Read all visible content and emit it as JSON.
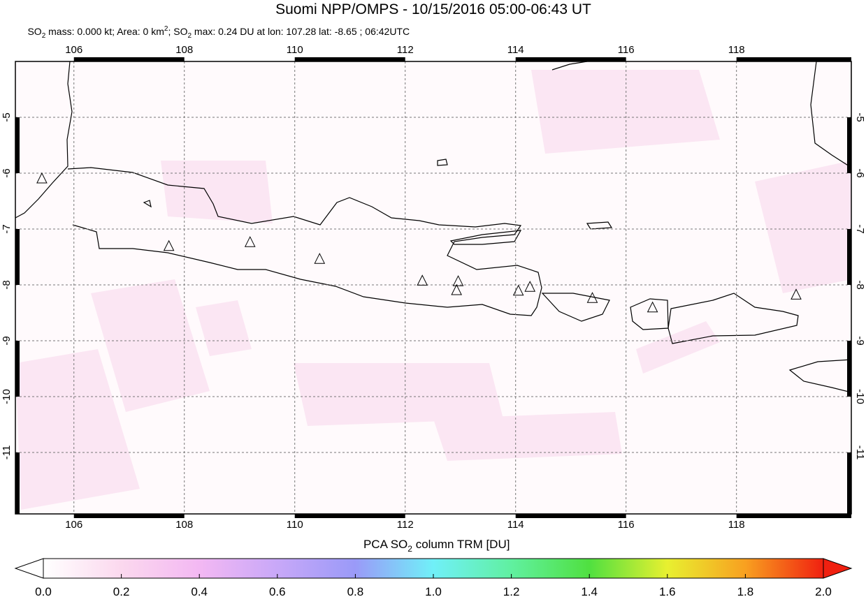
{
  "chart_data": {
    "type": "map",
    "title": "Suomi NPP/OMPS - 10/15/2016 05:00-06:43 UT",
    "subtitle": [
      "SO",
      "2",
      " mass: 0.000 kt; Area: 0 km",
      "2",
      "; SO",
      "2",
      " max: 0.24 DU at lon: 107.28 lat: -8.65 ; 06:42UTC"
    ],
    "xlim": [
      104.94,
      120.08
    ],
    "ylim": [
      -12.1,
      -4.0
    ],
    "xticks": [
      106,
      108,
      110,
      112,
      114,
      116,
      118
    ],
    "yticks": [
      -5,
      -6,
      -7,
      -8,
      -9,
      -10,
      -11
    ],
    "grid": true,
    "volcanoes": {
      "lon": [
        105.42,
        107.72,
        109.19,
        110.45,
        112.31,
        112.96,
        112.93,
        114.05,
        114.26,
        115.39,
        116.48,
        119.08
      ],
      "lat": [
        -6.1,
        -7.31,
        -7.24,
        -7.54,
        -7.93,
        -7.94,
        -8.1,
        -8.11,
        -8.04,
        -8.24,
        -8.41,
        -8.18
      ]
    },
    "colorbar": {
      "label": [
        "PCA SO",
        "2",
        " column TRM [DU]"
      ],
      "lim": [
        0,
        2
      ],
      "ticks": [
        {
          "value": 0,
          "label": "0.0"
        },
        0.2,
        0.4,
        0.6,
        0.8,
        {
          "value": 1,
          "label": "1.0"
        },
        1.2,
        1.4,
        1.6,
        1.8,
        {
          "value": 2,
          "label": "2.0"
        }
      ]
    }
  }
}
